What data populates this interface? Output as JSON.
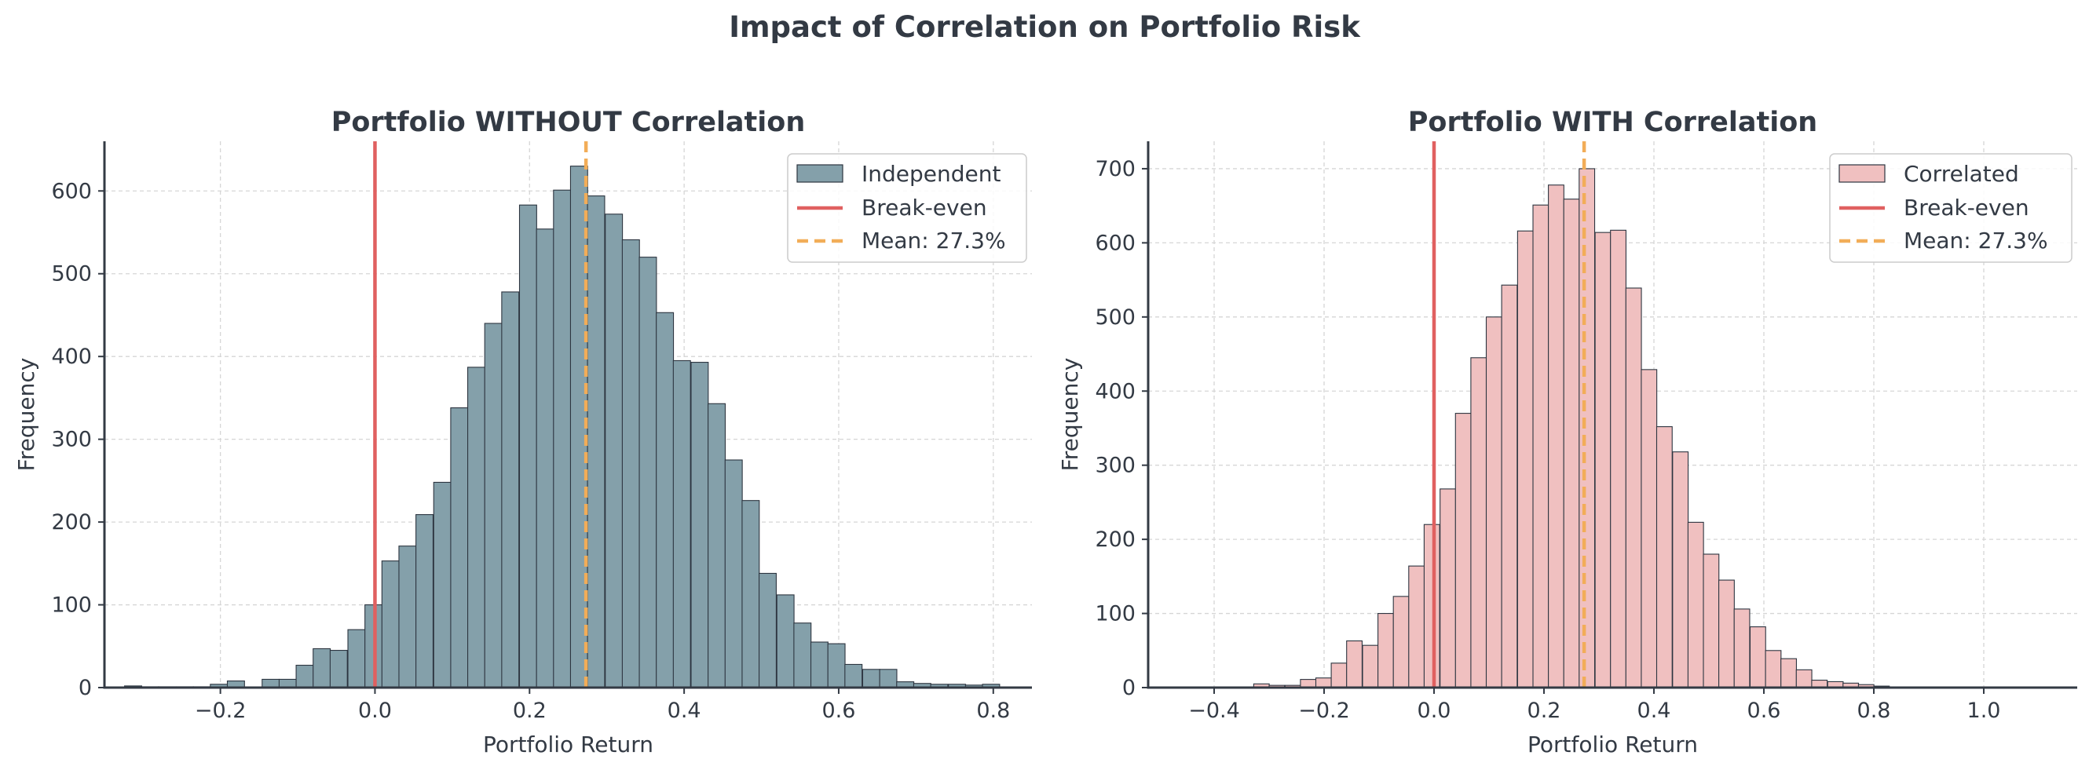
{
  "figure": {
    "suptitle": "Impact of Correlation on Portfolio Risk"
  },
  "chart_data": [
    {
      "type": "bar",
      "title": "Portfolio WITHOUT Correlation",
      "xlabel": "Portfolio Return",
      "ylabel": "Frequency",
      "xlim": [
        -0.35,
        0.85
      ],
      "ylim": [
        0,
        660
      ],
      "xticks": [
        -0.2,
        0.0,
        0.2,
        0.4,
        0.6,
        0.8
      ],
      "yticks": [
        0,
        100,
        200,
        300,
        400,
        500,
        600
      ],
      "xtick_labels": [
        "−0.2",
        "0.0",
        "0.2",
        "0.4",
        "0.6",
        "0.8"
      ],
      "ytick_labels": [
        "0",
        "100",
        "200",
        "300",
        "400",
        "500",
        "600"
      ],
      "grid": true,
      "legend_position": "top-right",
      "bin_width": 0.0222,
      "series": [
        {
          "name": "Independent",
          "bin_starts": [
            -0.324,
            -0.302,
            -0.28,
            -0.257,
            -0.235,
            -0.213,
            -0.191,
            -0.169,
            -0.146,
            -0.124,
            -0.102,
            -0.08,
            -0.058,
            -0.035,
            -0.013,
            0.009,
            0.031,
            0.053,
            0.076,
            0.098,
            0.12,
            0.142,
            0.164,
            0.187,
            0.209,
            0.231,
            0.253,
            0.275,
            0.298,
            0.32,
            0.342,
            0.364,
            0.386,
            0.409,
            0.431,
            0.453,
            0.475,
            0.497,
            0.52,
            0.542,
            0.564,
            0.586,
            0.608,
            0.631,
            0.653,
            0.675,
            0.697,
            0.719,
            0.742,
            0.764,
            0.786
          ],
          "counts": [
            2,
            1,
            1,
            1,
            1,
            4,
            8,
            0,
            10,
            10,
            27,
            47,
            45,
            70,
            100,
            153,
            171,
            209,
            248,
            338,
            387,
            440,
            478,
            583,
            554,
            601,
            630,
            594,
            572,
            541,
            520,
            453,
            395,
            393,
            343,
            275,
            226,
            138,
            112,
            78,
            55,
            53,
            28,
            22,
            22,
            7,
            5,
            4,
            4,
            3,
            4
          ],
          "color": "#84a0aa",
          "edge_color": "#2d3540"
        },
        {
          "name": "Break-even",
          "x": 0.0,
          "color": "#e06060",
          "style": "solid"
        },
        {
          "name": "Mean: 27.3%",
          "x": 0.273,
          "color": "#f2ad58",
          "style": "dashed"
        }
      ]
    },
    {
      "type": "bar",
      "title": "Portfolio WITH Correlation",
      "xlabel": "Portfolio Return",
      "ylabel": "Frequency",
      "xlim": [
        -0.52,
        1.17
      ],
      "ylim": [
        0,
        737
      ],
      "xticks": [
        -0.4,
        -0.2,
        0.0,
        0.2,
        0.4,
        0.6,
        0.8,
        1.0
      ],
      "yticks": [
        0,
        100,
        200,
        300,
        400,
        500,
        600,
        700
      ],
      "xtick_labels": [
        "−0.4",
        "−0.2",
        "0.0",
        "0.2",
        "0.4",
        "0.6",
        "0.8",
        "1.0"
      ],
      "ytick_labels": [
        "0",
        "100",
        "200",
        "300",
        "400",
        "500",
        "600",
        "700"
      ],
      "grid": true,
      "legend_position": "top-right",
      "bin_width": 0.0282,
      "series": [
        {
          "name": "Correlated",
          "bin_starts": [
            -0.384,
            -0.356,
            -0.328,
            -0.3,
            -0.271,
            -0.243,
            -0.215,
            -0.187,
            -0.159,
            -0.13,
            -0.102,
            -0.074,
            -0.046,
            -0.018,
            0.011,
            0.039,
            0.067,
            0.095,
            0.123,
            0.152,
            0.18,
            0.208,
            0.236,
            0.264,
            0.293,
            0.321,
            0.349,
            0.377,
            0.405,
            0.434,
            0.462,
            0.49,
            0.518,
            0.546,
            0.575,
            0.603,
            0.631,
            0.659,
            0.687,
            0.716,
            0.744,
            0.772,
            0.8,
            0.828,
            0.857,
            0.885
          ],
          "counts": [
            1,
            1,
            5,
            3,
            3,
            11,
            13,
            33,
            63,
            57,
            100,
            123,
            164,
            220,
            268,
            370,
            445,
            500,
            543,
            616,
            651,
            678,
            659,
            700,
            614,
            617,
            539,
            429,
            352,
            318,
            223,
            180,
            145,
            106,
            82,
            50,
            39,
            24,
            10,
            8,
            6,
            4,
            2,
            1,
            1,
            1
          ],
          "color": "#f0c0c0",
          "edge_color": "#2d3540"
        },
        {
          "name": "Break-even",
          "x": 0.0,
          "color": "#e06060",
          "style": "solid"
        },
        {
          "name": "Mean: 27.3%",
          "x": 0.273,
          "color": "#f2ad58",
          "style": "dashed"
        }
      ]
    }
  ]
}
